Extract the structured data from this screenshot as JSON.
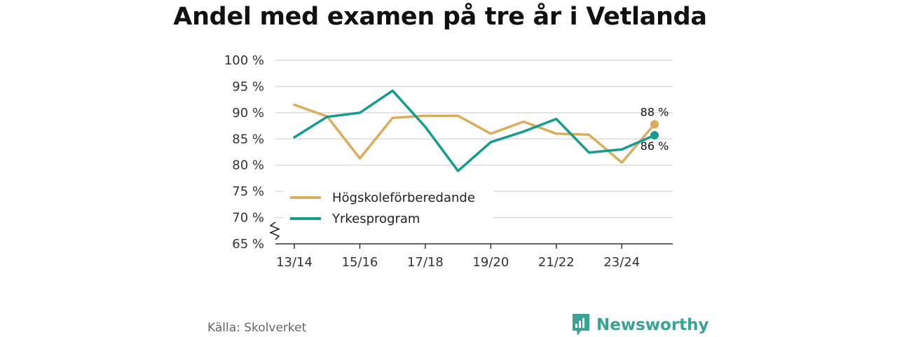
{
  "title": "Andel med examen på tre år i Vetlanda",
  "source": "Källa: Skolverket",
  "brand": "Newsworthy",
  "chart_data": {
    "type": "line",
    "title": "Andel med examen på tre år i Vetlanda",
    "xlabel": "",
    "ylabel": "",
    "x": [
      "13/14",
      "14/15",
      "15/16",
      "16/17",
      "17/18",
      "18/19",
      "19/20",
      "20/21",
      "21/22",
      "22/23",
      "23/24",
      "24/25"
    ],
    "x_tick_labels": [
      "13/14",
      "15/16",
      "17/18",
      "19/20",
      "21/22",
      "23/24"
    ],
    "ylim": [
      65,
      100
    ],
    "y_ticks": [
      65,
      70,
      75,
      80,
      85,
      90,
      95,
      100
    ],
    "y_tick_labels": [
      "65 %",
      "70 %",
      "75 %",
      "80 %",
      "85 %",
      "90 %",
      "95 %",
      "100 %"
    ],
    "grid": true,
    "axis_break": true,
    "legend_position": "lower-left",
    "series": [
      {
        "name": "Högskoleförberedande",
        "color": "#d9ad5b",
        "values": [
          91.5,
          89.3,
          81.3,
          89.0,
          89.4,
          89.4,
          86.0,
          88.3,
          86.0,
          85.8,
          80.5,
          87.8
        ],
        "end_label": "88 %"
      },
      {
        "name": "Yrkesprogram",
        "color": "#169c8e",
        "values": [
          85.3,
          89.2,
          90.0,
          94.2,
          87.3,
          78.9,
          84.4,
          86.4,
          88.8,
          82.4,
          83.0,
          85.7
        ],
        "end_label": "86 %"
      }
    ]
  }
}
